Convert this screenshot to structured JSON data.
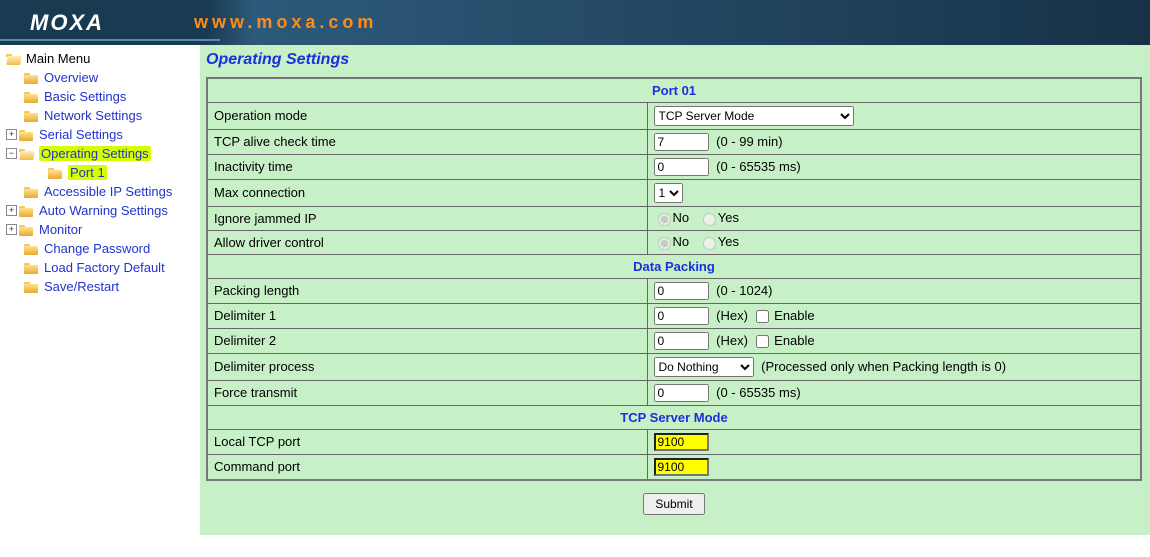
{
  "header": {
    "logo_text": "MOXA",
    "url_text": "www.moxa.com"
  },
  "sidebar": {
    "root": "Main Menu",
    "items": [
      {
        "label": "Overview",
        "expandable": false,
        "level": 1
      },
      {
        "label": "Basic Settings",
        "expandable": false,
        "level": 1
      },
      {
        "label": "Network Settings",
        "expandable": false,
        "level": 1
      },
      {
        "label": "Serial Settings",
        "expandable": true,
        "expanded": false,
        "level": 1
      },
      {
        "label": "Operating Settings",
        "expandable": true,
        "expanded": true,
        "level": 1,
        "highlight": true,
        "children": [
          {
            "label": "Port 1",
            "level": 2,
            "highlight": true
          }
        ]
      },
      {
        "label": "Accessible IP Settings",
        "expandable": false,
        "level": 1
      },
      {
        "label": "Auto Warning Settings",
        "expandable": true,
        "expanded": false,
        "level": 1
      },
      {
        "label": "Monitor",
        "expandable": true,
        "expanded": false,
        "level": 1
      },
      {
        "label": "Change Password",
        "expandable": false,
        "level": 1
      },
      {
        "label": "Load Factory Default",
        "expandable": false,
        "level": 1
      },
      {
        "label": "Save/Restart",
        "expandable": false,
        "level": 1
      }
    ]
  },
  "page": {
    "title": "Operating Settings",
    "sections": {
      "port": "Port 01",
      "data_packing": "Data Packing",
      "tcp_server": "TCP Server Mode"
    },
    "rows": {
      "operation_mode": {
        "label": "Operation mode",
        "value": "TCP Server Mode"
      },
      "tcp_alive": {
        "label": "TCP alive check time",
        "value": "7",
        "hint": "(0 - 99 min)"
      },
      "inactivity": {
        "label": "Inactivity time",
        "value": "0",
        "hint": "(0 - 65535 ms)"
      },
      "max_conn": {
        "label": "Max connection",
        "value": "1"
      },
      "ignore_jammed": {
        "label": "Ignore jammed IP",
        "no": "No",
        "yes": "Yes",
        "checked": "no"
      },
      "allow_driver": {
        "label": "Allow driver control",
        "no": "No",
        "yes": "Yes",
        "checked": "no"
      },
      "packing_len": {
        "label": "Packing length",
        "value": "0",
        "hint": "(0 - 1024)"
      },
      "delim1": {
        "label": "Delimiter 1",
        "value": "0",
        "hint": "(Hex)",
        "enable_label": "Enable",
        "enabled": false
      },
      "delim2": {
        "label": "Delimiter 2",
        "value": "0",
        "hint": "(Hex)",
        "enable_label": "Enable",
        "enabled": false
      },
      "delim_proc": {
        "label": "Delimiter process",
        "value": "Do Nothing",
        "hint": "(Processed only when Packing length is 0)"
      },
      "force_tx": {
        "label": "Force transmit",
        "value": "0",
        "hint": "(0 - 65535 ms)"
      },
      "local_port": {
        "label": "Local TCP port",
        "value": "9100",
        "highlight": true
      },
      "cmd_port": {
        "label": "Command port",
        "value": "9100",
        "highlight": true
      }
    },
    "submit_label": "Submit"
  }
}
